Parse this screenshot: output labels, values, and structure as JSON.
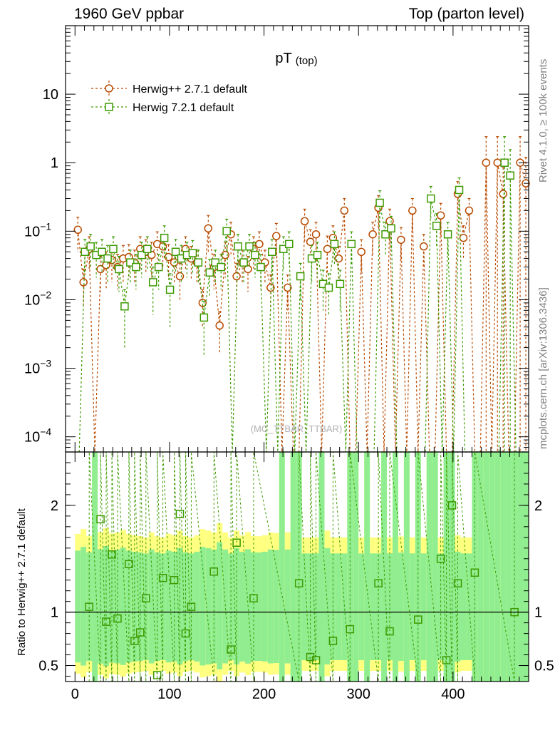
{
  "header": {
    "left": "1960 GeV ppbar",
    "right": "Top (parton level)"
  },
  "side_text": {
    "rivet": "Rivet 4.1.0, ≥ 100k events",
    "mcplots": "mcplots.cern.ch [arXiv:1306.3436]"
  },
  "watermark": "(MC_TTBAR_TTBAR)",
  "colors": {
    "herwigpp": "#b84a00",
    "herwig7": "#3d9a00",
    "band_green": "#90ee90",
    "band_yellow": "#ffff80"
  },
  "chart_data": [
    {
      "type": "line",
      "title": "pT",
      "title_sub": "(top)",
      "xlabel": "",
      "ylabel": "",
      "yscale": "log",
      "ylim": [
        6e-05,
        100
      ],
      "xlim": [
        -10,
        480
      ],
      "ytick_labels": [
        {
          "v": 10,
          "t": "10",
          "sup": ""
        },
        {
          "v": 1,
          "t": "1",
          "sup": ""
        },
        {
          "v": 0.1,
          "t": "10",
          "sup": "−1"
        },
        {
          "v": 0.01,
          "t": "10",
          "sup": "−2"
        },
        {
          "v": 0.001,
          "t": "10",
          "sup": "−3"
        },
        {
          "v": 0.0001,
          "t": "10",
          "sup": "−4"
        }
      ],
      "legend": [
        "Herwig++ 2.7.1 default",
        "Herwig 7.2.1 default"
      ],
      "legend_position": "top-left",
      "series": [
        {
          "name": "Herwig++ 2.7.1 default",
          "marker": "circle",
          "x": [
            3,
            9,
            15,
            21,
            27,
            33,
            39,
            45,
            51,
            57,
            63,
            69,
            75,
            81,
            87,
            93,
            99,
            105,
            111,
            117,
            123,
            129,
            135,
            141,
            147,
            153,
            159,
            165,
            171,
            177,
            183,
            189,
            195,
            201,
            207,
            213,
            219,
            225,
            231,
            237,
            243,
            249,
            255,
            261,
            267,
            273,
            279,
            285,
            291,
            297,
            303,
            309,
            315,
            321,
            327,
            333,
            339,
            345,
            351,
            357,
            363,
            369,
            375,
            381,
            387,
            393,
            399,
            405,
            411,
            417,
            423,
            429,
            435,
            441,
            447,
            453,
            459,
            465,
            471,
            477
          ],
          "y": [
            0.105,
            0.018,
            0.055,
            0.0,
            0.028,
            0.032,
            0.038,
            0.03,
            0.04,
            0.042,
            0.035,
            0.055,
            0.05,
            0.045,
            0.065,
            0.06,
            0.042,
            0.035,
            0.022,
            0.055,
            0.04,
            0.035,
            0.009,
            0.11,
            0.03,
            0.0042,
            0.045,
            0.09,
            0.022,
            0.035,
            0.028,
            0.055,
            0.065,
            0.035,
            0.015,
            0.085,
            0.0,
            0.015,
            0.0,
            0.0,
            0.14,
            0.07,
            0.09,
            0.0,
            0.055,
            0.08,
            0.04,
            0.2,
            0.0,
            0.0,
            0.05,
            0.0,
            0.09,
            0.22,
            0.0,
            0.14,
            0.0,
            0.075,
            0.0,
            0.2,
            0.0,
            0.06,
            0.0,
            0.0,
            0.17,
            0.0,
            0.0,
            0.35,
            0.08,
            0.2,
            0.0,
            0.0,
            1.0,
            0.0,
            1.0,
            0.35,
            0.0,
            0.0,
            1.0,
            0.5
          ],
          "errors": [
            0.055,
            0.01,
            0.028,
            0.0,
            0.015,
            0.018,
            0.02,
            0.016,
            0.022,
            0.022,
            0.018,
            0.028,
            0.025,
            0.024,
            0.033,
            0.03,
            0.022,
            0.018,
            0.012,
            0.028,
            0.02,
            0.018,
            0.005,
            0.06,
            0.016,
            0.0025,
            0.024,
            0.045,
            0.012,
            0.018,
            0.015,
            0.028,
            0.033,
            0.018,
            0.008,
            0.045,
            0.0,
            0.008,
            0.0,
            0.0,
            0.07,
            0.035,
            0.045,
            0.0,
            0.03,
            0.04,
            0.02,
            0.1,
            0.0,
            0.0,
            0.025,
            0.0,
            0.045,
            0.11,
            0.0,
            0.07,
            0.0,
            0.038,
            0.0,
            0.1,
            0.0,
            0.03,
            0.0,
            0.0,
            0.085,
            0.0,
            0.0,
            0.18,
            0.04,
            0.1,
            0.0,
            0.0,
            1.4,
            0.0,
            1.4,
            0.5,
            0.0,
            0.0,
            1.4,
            0.7
          ]
        },
        {
          "name": "Herwig 7.2.1 default",
          "marker": "square",
          "x": [
            3,
            9,
            15,
            21,
            27,
            33,
            39,
            45,
            51,
            57,
            63,
            69,
            75,
            81,
            87,
            93,
            99,
            105,
            111,
            117,
            123,
            129,
            135,
            141,
            147,
            153,
            159,
            165,
            171,
            177,
            183,
            189,
            195,
            201,
            207,
            213,
            219,
            225,
            231,
            237,
            243,
            249,
            255,
            261,
            267,
            273,
            279,
            285,
            291,
            297,
            303,
            309,
            315,
            321,
            327,
            333,
            339,
            345,
            351,
            357,
            363,
            369,
            375,
            381,
            387,
            393,
            399,
            405,
            411,
            417,
            423,
            429,
            435,
            441,
            447,
            453,
            459,
            465,
            471,
            477
          ],
          "y": [
            0.0,
            0.05,
            0.06,
            0.045,
            0.05,
            0.04,
            0.055,
            0.028,
            0.008,
            0.035,
            0.03,
            0.045,
            0.055,
            0.018,
            0.03,
            0.08,
            0.014,
            0.05,
            0.04,
            0.045,
            0.048,
            0.035,
            0.0055,
            0.025,
            0.035,
            0.03,
            0.1,
            0.0,
            0.06,
            0.035,
            0.06,
            0.045,
            0.03,
            0.0,
            0.05,
            0.0,
            0.055,
            0.065,
            0.0,
            0.022,
            0.0,
            0.04,
            0.045,
            0.017,
            0.015,
            0.065,
            0.017,
            0.0,
            0.065,
            0.0,
            0.0,
            0.0,
            0.0,
            0.26,
            0.09,
            0.11,
            0.0,
            0.0,
            0.0,
            0.0,
            0.0,
            0.0,
            0.3,
            0.12,
            0.0,
            0.09,
            0.0,
            0.4,
            0.0,
            0.0,
            0.0,
            0.0,
            0.0,
            0.0,
            0.0,
            1.0,
            0.65,
            0.0,
            0.0,
            0.0
          ],
          "errors": [
            0.0,
            0.026,
            0.03,
            0.024,
            0.026,
            0.022,
            0.028,
            0.015,
            0.006,
            0.018,
            0.016,
            0.024,
            0.028,
            0.012,
            0.016,
            0.04,
            0.01,
            0.026,
            0.022,
            0.024,
            0.025,
            0.018,
            0.004,
            0.014,
            0.018,
            0.016,
            0.05,
            0.0,
            0.03,
            0.018,
            0.03,
            0.024,
            0.016,
            0.0,
            0.026,
            0.0,
            0.028,
            0.033,
            0.0,
            0.012,
            0.0,
            0.022,
            0.024,
            0.01,
            0.009,
            0.033,
            0.01,
            0.0,
            0.033,
            0.0,
            0.0,
            0.0,
            0.0,
            0.13,
            0.045,
            0.055,
            0.0,
            0.0,
            0.0,
            0.0,
            0.0,
            0.0,
            0.15,
            0.06,
            0.0,
            0.045,
            0.0,
            0.2,
            0.0,
            0.0,
            0.0,
            0.0,
            0.0,
            0.0,
            0.0,
            1.4,
            0.9,
            0.0,
            0.0,
            0.0
          ]
        }
      ]
    },
    {
      "type": "line",
      "title": "",
      "xlabel": "",
      "ylabel": "Ratio to Herwig++ 2.7.1 default",
      "ylim": [
        0.35,
        2.5
      ],
      "xlim": [
        -10,
        480
      ],
      "x_ticks": [
        0,
        100,
        200,
        300,
        400
      ],
      "y_ticks": [
        0.5,
        1,
        2
      ],
      "reference_line": 1,
      "series": [
        {
          "name": "Herwig 7.2.1 default",
          "marker": "square",
          "x": [
            15,
            27,
            33,
            39,
            45,
            57,
            63,
            69,
            75,
            87,
            93,
            105,
            111,
            117,
            123,
            147,
            165,
            171,
            189,
            237,
            249,
            255,
            273,
            291,
            321,
            333,
            363,
            387,
            393,
            399,
            405,
            423,
            465
          ],
          "y": [
            1.05,
            1.87,
            0.91,
            1.54,
            0.94,
            1.45,
            0.73,
            0.81,
            1.13,
            0.41,
            1.32,
            1.3,
            1.92,
            0.8,
            1.05,
            1.38,
            0.65,
            1.65,
            1.13,
            1.27,
            0.58,
            0.55,
            0.73,
            0.84,
            1.27,
            0.82,
            0.93,
            1.5,
            0.55,
            2.0,
            1.27,
            1.37,
            1.0
          ]
        }
      ]
    }
  ]
}
